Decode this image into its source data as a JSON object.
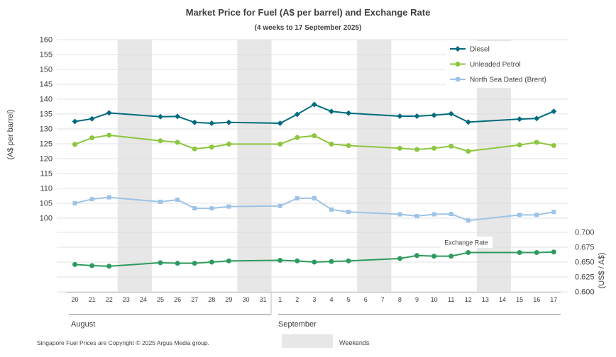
{
  "chart_data": {
    "type": "line",
    "title": "Market Price for Fuel (A$ per barrel) and Exchange Rate",
    "subtitle": "(4 weeks to 17 September 2025)",
    "ylabel": "(A$ per barrel)",
    "y2label": "(US$ / A$)",
    "ylim": [
      100,
      160
    ],
    "yticks": [
      "160",
      "155",
      "150",
      "145",
      "140",
      "135",
      "130",
      "125",
      "120",
      "115",
      "110",
      "105",
      "100"
    ],
    "y2lim": [
      0.6,
      0.7
    ],
    "y2ticks": [
      "0.700",
      "0.675",
      "0.650",
      "0.625",
      "0.600"
    ],
    "categories": [
      "20",
      "21",
      "22",
      "23",
      "24",
      "25",
      "26",
      "27",
      "28",
      "29",
      "30",
      "31",
      "1",
      "2",
      "3",
      "4",
      "5",
      "6",
      "7",
      "8",
      "9",
      "10",
      "11",
      "12",
      "13",
      "14",
      "15",
      "16",
      "17"
    ],
    "months": [
      "August",
      "September"
    ],
    "weekend_ranges": [
      [
        3,
        4
      ],
      [
        10,
        11
      ],
      [
        17,
        18
      ],
      [
        24,
        25
      ]
    ],
    "series": [
      {
        "name": "Diesel",
        "axis": "left",
        "color": "#006b7d",
        "marker": "diamond",
        "values": [
          132.5,
          133.4,
          135.4,
          null,
          null,
          134.1,
          134.2,
          132.2,
          131.9,
          132.2,
          null,
          null,
          131.9,
          134.9,
          138.2,
          135.9,
          135.3,
          null,
          null,
          134.3,
          134.3,
          134.6,
          135.1,
          132.3,
          null,
          null,
          133.3,
          133.5,
          135.9
        ]
      },
      {
        "name": "Unleaded Petrol",
        "axis": "left",
        "color": "#8cc63f",
        "marker": "circle",
        "values": [
          124.8,
          127.0,
          127.9,
          null,
          null,
          126.0,
          125.5,
          123.3,
          123.9,
          124.9,
          null,
          null,
          124.9,
          127.1,
          127.7,
          124.9,
          124.4,
          null,
          null,
          123.5,
          123.1,
          123.5,
          124.2,
          122.5,
          null,
          null,
          124.6,
          125.5,
          124.4
        ]
      },
      {
        "name": "North Sea Dated (Brent)",
        "axis": "left",
        "color": "#9dc3e6",
        "marker": "square",
        "values": [
          105.0,
          106.4,
          107.0,
          null,
          null,
          105.5,
          106.2,
          103.3,
          103.3,
          103.9,
          null,
          null,
          104.1,
          106.7,
          106.7,
          102.9,
          102.1,
          null,
          null,
          101.3,
          100.7,
          101.3,
          101.4,
          99.2,
          null,
          null,
          101.1,
          101.1,
          102.1
        ]
      },
      {
        "name": "Exchange Rate",
        "axis": "right",
        "color": "#2e9a5e",
        "marker": "circle",
        "values": [
          0.646,
          0.644,
          0.643,
          null,
          null,
          0.649,
          0.648,
          0.648,
          0.65,
          0.652,
          null,
          null,
          0.653,
          0.652,
          0.65,
          0.651,
          0.652,
          null,
          null,
          0.656,
          0.661,
          0.66,
          0.66,
          0.666,
          null,
          null,
          0.666,
          0.666,
          0.667
        ]
      }
    ],
    "annotations": [
      "Exchange Rate"
    ]
  },
  "footer": {
    "copyright": "Singapore Fuel Prices are Copyright © 2025 Argus Media group.",
    "weekends_label": "Weekends"
  },
  "colors": {
    "weekend_fill": "#e7e7e7",
    "grid": "#d9d9d9",
    "text": "#404040"
  }
}
